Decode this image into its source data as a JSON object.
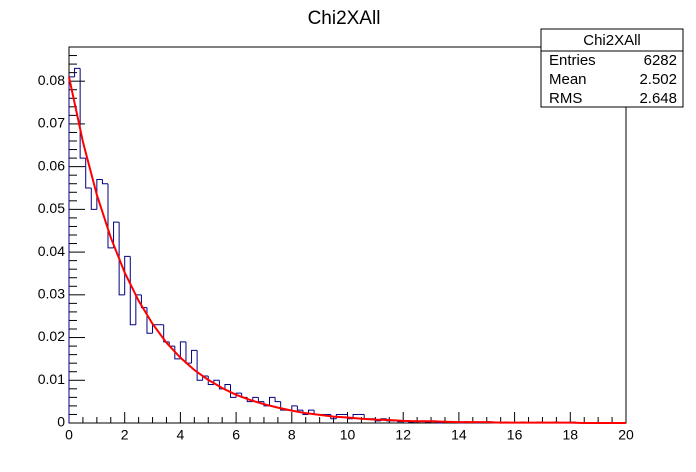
{
  "chart_data": {
    "type": "histogram",
    "title": "Chi2XAll",
    "bins": [
      0,
      0.2,
      0.4,
      0.6,
      0.8,
      1,
      1.2,
      1.4,
      1.6,
      1.8,
      2,
      2.2,
      2.4,
      2.6,
      2.8,
      3,
      3.2,
      3.4,
      3.6,
      3.8,
      4,
      4.2,
      4.4,
      4.6,
      4.8,
      5,
      5.2,
      5.4,
      5.6,
      5.8,
      6,
      6.2,
      6.4,
      6.6,
      6.8,
      7,
      7.2,
      7.4,
      7.6,
      7.8,
      8,
      8.2,
      8.4,
      8.6,
      8.8,
      9,
      9.2,
      9.4,
      9.6,
      9.8,
      10,
      10.2,
      10.4,
      10.6,
      10.8,
      11,
      11.2,
      11.4,
      11.6,
      11.8,
      12,
      12.2,
      12.4,
      12.6,
      12.8,
      13,
      13.2,
      13.4,
      13.6,
      13.8,
      14,
      14.2,
      14.4,
      14.6,
      14.8,
      15,
      15.2,
      15.4,
      15.6,
      15.8,
      16,
      16.2,
      16.4,
      16.6,
      16.8,
      17,
      17.2,
      17.4,
      17.6,
      17.8,
      18,
      18.2,
      18.4,
      18.6,
      18.8,
      19,
      19.2,
      19.4,
      19.6,
      19.8,
      20
    ],
    "values": [
      0.081,
      0.083,
      0.062,
      0.055,
      0.05,
      0.057,
      0.056,
      0.041,
      0.047,
      0.03,
      0.039,
      0.023,
      0.03,
      0.027,
      0.021,
      0.023,
      0.023,
      0.019,
      0.018,
      0.015,
      0.019,
      0.014,
      0.017,
      0.01,
      0.011,
      0.009,
      0.01,
      0.008,
      0.009,
      0.006,
      0.007,
      0.006,
      0.005,
      0.006,
      0.005,
      0.004,
      0.006,
      0.005,
      0.003,
      0.003,
      0.004,
      0.003,
      0.002,
      0.003,
      0.002,
      0.002,
      0.002,
      0.001,
      0.002,
      0.002,
      0.001,
      0.002,
      0.002,
      0.001,
      0.001,
      0.0005,
      0.001,
      0.0005,
      0.0005,
      0.0003,
      0.0005,
      0.0002,
      0.0003,
      0.0005,
      0.0002,
      0.0005,
      0,
      0.0003,
      0.0002,
      0.0002,
      0,
      0.0003,
      0.0002,
      0,
      0.0002,
      0.0003,
      0,
      0,
      0.0002,
      0,
      0,
      0.0002,
      0,
      0,
      0.0002,
      0,
      0,
      0.0002,
      0,
      0,
      0.0002,
      0,
      0,
      0,
      0,
      0,
      0,
      0,
      0,
      0
    ],
    "color": "#000080",
    "fit": {
      "color": "#ff0000",
      "x": [
        0,
        0.5,
        1,
        1.5,
        2,
        2.5,
        3,
        3.5,
        4,
        4.5,
        5,
        5.5,
        6,
        6.5,
        7,
        7.5,
        8,
        8.5,
        9,
        9.5,
        10,
        10.5,
        11,
        11.5,
        12,
        12.5,
        13,
        13.5,
        14,
        14.5,
        15,
        15.5,
        16,
        16.5,
        17,
        17.5,
        18,
        18.5,
        19,
        19.5,
        20
      ],
      "values": [
        0.081,
        0.0658,
        0.0534,
        0.0434,
        0.0352,
        0.0286,
        0.0232,
        0.0188,
        0.0153,
        0.0124,
        0.0101,
        0.0082,
        0.0066,
        0.0054,
        0.0044,
        0.0036,
        0.0029,
        0.0023,
        0.0019,
        0.0015,
        0.0013,
        0.001,
        0.0008,
        0.0007,
        0.0005,
        0.0004,
        0.0004,
        0.0003,
        0.0002,
        0.0002,
        0.0002,
        0.0001,
        0.0001,
        0.0001,
        0.0001,
        0.0001,
        0.0001,
        0,
        0,
        0,
        0
      ]
    },
    "xlim": [
      0,
      20
    ],
    "xticks": [
      0,
      2,
      4,
      6,
      8,
      10,
      12,
      14,
      16,
      18,
      20
    ],
    "ylim": [
      0,
      0.088
    ],
    "yticks": [
      0,
      0.01,
      0.02,
      0.03,
      0.04,
      0.05,
      0.06,
      0.07,
      0.08
    ],
    "stats": {
      "title": "Chi2XAll",
      "rows": [
        [
          "Entries",
          "6282"
        ],
        [
          "Mean",
          "2.502"
        ],
        [
          "RMS",
          "2.648"
        ]
      ]
    }
  }
}
